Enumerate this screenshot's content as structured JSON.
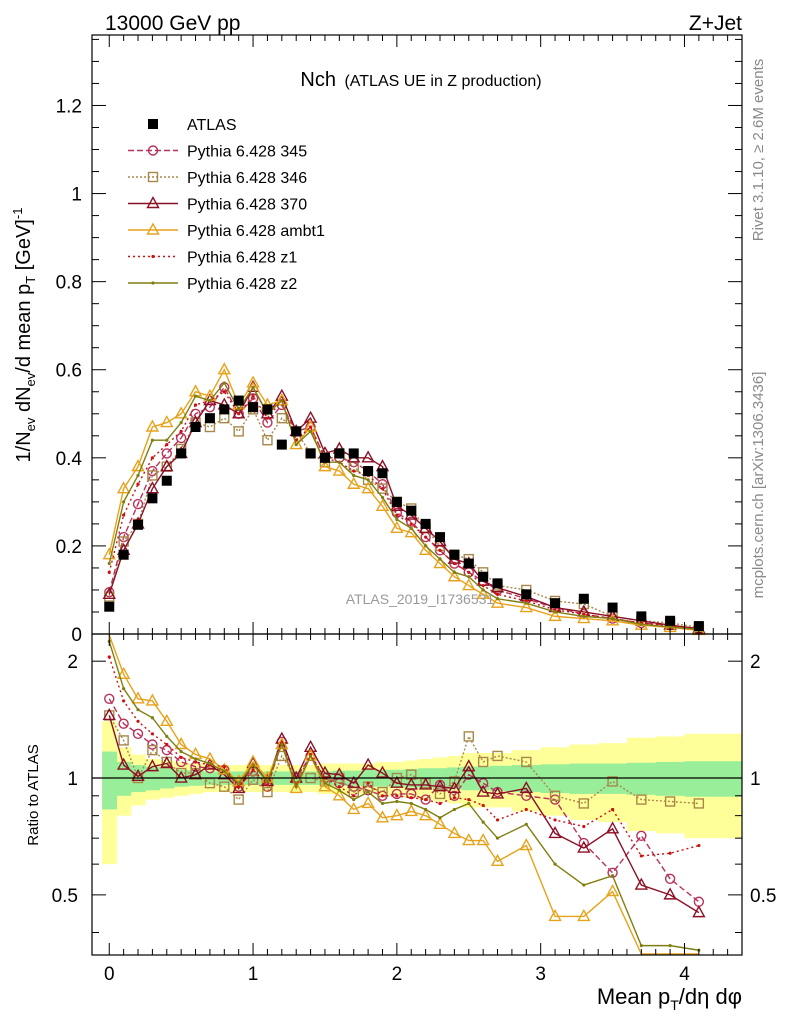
{
  "header": {
    "left": "13000 GeV pp",
    "right": "Z+Jet"
  },
  "side_labels": {
    "rivet": "Rivet 3.1.10, ≥ 2.6M events",
    "mcplots": "mcplots.cern.ch [arXiv:1306.3436]"
  },
  "chart_data": {
    "type": "scatter",
    "title": "Nch",
    "subtitle": "(ATLAS UE in Z production)",
    "watermark": "ATLAS_2019_I1736531",
    "xlabel": "Mean p_T/dη dφ",
    "ylabel": "1/N_ev dN_ev/d mean p_T [GeV]^-1",
    "ratio_ylabel": "Ratio to ATLAS",
    "xlim": [
      -0.12,
      4.4
    ],
    "ylim": [
      0,
      1.36
    ],
    "ratio_ylim": [
      0.35,
      2.35
    ],
    "x_ticks": [
      "0",
      "1",
      "2",
      "3",
      "4"
    ],
    "y_ticks": [
      "0",
      "0.2",
      "0.4",
      "0.6",
      "0.8",
      "1",
      "1.2"
    ],
    "ratio_ticks": [
      "0.5",
      "1",
      "2"
    ],
    "legend_position": "top-left",
    "data": {
      "name": "ATLAS",
      "color": "#000000",
      "x": [
        0.0,
        0.1,
        0.2,
        0.3,
        0.4,
        0.5,
        0.6,
        0.7,
        0.8,
        0.9,
        1.0,
        1.1,
        1.2,
        1.3,
        1.4,
        1.5,
        1.6,
        1.7,
        1.8,
        1.9,
        2.0,
        2.1,
        2.2,
        2.3,
        2.4,
        2.5,
        2.6,
        2.7,
        2.9,
        3.1,
        3.3,
        3.5,
        3.7,
        3.9,
        4.1
      ],
      "y": [
        0.062,
        0.18,
        0.248,
        0.308,
        0.348,
        0.41,
        0.47,
        0.49,
        0.51,
        0.53,
        0.515,
        0.51,
        0.43,
        0.46,
        0.41,
        0.4,
        0.41,
        0.41,
        0.37,
        0.365,
        0.3,
        0.28,
        0.25,
        0.22,
        0.18,
        0.16,
        0.13,
        0.115,
        0.09,
        0.07,
        0.08,
        0.06,
        0.04,
        0.03,
        0.018
      ]
    },
    "series": [
      {
        "name": "Pythia 6.428 345",
        "color": "#b8315a",
        "marker": "circle",
        "dash": "6,3",
        "y": [
          0.095,
          0.22,
          0.295,
          0.37,
          0.41,
          0.445,
          0.5,
          0.515,
          0.56,
          0.5,
          0.535,
          0.48,
          0.52,
          0.46,
          0.47,
          0.4,
          0.4,
          0.39,
          0.37,
          0.34,
          0.275,
          0.255,
          0.22,
          0.19,
          0.16,
          0.14,
          0.12,
          0.1,
          0.08,
          0.06,
          0.045,
          0.035,
          0.025,
          0.02,
          0.012
        ],
        "ratio": [
          1.6,
          1.38,
          1.3,
          1.22,
          1.18,
          1.1,
          1.07,
          1.06,
          1.05,
          0.95,
          1.04,
          0.95,
          1.24,
          1.0,
          1.14,
          1.0,
          0.97,
          0.95,
          0.93,
          0.9,
          0.91,
          0.91,
          0.88,
          0.96,
          0.9,
          1.02,
          0.97,
          0.92,
          0.9,
          0.88,
          0.68,
          0.57,
          0.71,
          0.55,
          0.48
        ]
      },
      {
        "name": "Pythia 6.428 346",
        "color": "#a8884a",
        "marker": "square",
        "dash": "2,2",
        "y": [
          0.085,
          0.21,
          0.25,
          0.36,
          0.38,
          0.42,
          0.48,
          0.47,
          0.49,
          0.46,
          0.51,
          0.44,
          0.49,
          0.46,
          0.41,
          0.39,
          0.41,
          0.38,
          0.35,
          0.33,
          0.3,
          0.285,
          0.24,
          0.2,
          0.18,
          0.17,
          0.14,
          0.11,
          0.1,
          0.075,
          0.068,
          0.04,
          0.03,
          0.025,
          0.015
        ],
        "ratio": [
          1.45,
          1.25,
          1.0,
          1.18,
          1.1,
          1.03,
          1.03,
          0.97,
          0.95,
          0.88,
          0.99,
          0.92,
          1.14,
          1.0,
          1.0,
          0.98,
          1.0,
          0.92,
          0.95,
          0.92,
          1.0,
          1.02,
          0.97,
          0.91,
          0.98,
          1.28,
          1.1,
          1.14,
          1.1,
          0.9,
          0.86,
          0.98,
          0.88,
          0.87,
          0.86
        ]
      },
      {
        "name": "Pythia 6.428 370",
        "color": "#8b1025",
        "marker": "triangle",
        "dash": "",
        "y": [
          0.09,
          0.19,
          0.25,
          0.33,
          0.38,
          0.41,
          0.48,
          0.53,
          0.52,
          0.5,
          0.56,
          0.5,
          0.54,
          0.46,
          0.49,
          0.41,
          0.42,
          0.4,
          0.4,
          0.38,
          0.29,
          0.27,
          0.24,
          0.21,
          0.17,
          0.16,
          0.12,
          0.105,
          0.085,
          0.06,
          0.05,
          0.04,
          0.03,
          0.02,
          0.012
        ],
        "ratio": [
          1.45,
          1.08,
          1.01,
          1.07,
          1.09,
          1.0,
          1.02,
          1.08,
          1.02,
          0.94,
          1.09,
          0.98,
          1.26,
          1.0,
          1.2,
          1.03,
          1.02,
          0.97,
          1.08,
          1.03,
          0.97,
          0.96,
          0.96,
          0.95,
          0.94,
          1.07,
          0.92,
          0.91,
          0.94,
          0.72,
          0.66,
          0.74,
          0.53,
          0.5,
          0.45
        ]
      },
      {
        "name": "Pythia 6.428 ambt1",
        "color": "#e8a21a",
        "marker": "triangle",
        "dash": "",
        "y": [
          0.18,
          0.33,
          0.38,
          0.47,
          0.48,
          0.5,
          0.55,
          0.54,
          0.6,
          0.52,
          0.57,
          0.52,
          0.53,
          0.43,
          0.47,
          0.38,
          0.37,
          0.34,
          0.33,
          0.29,
          0.24,
          0.23,
          0.19,
          0.16,
          0.13,
          0.11,
          0.09,
          0.07,
          0.06,
          0.04,
          0.035,
          0.03,
          0.02,
          0.015,
          0.008
        ],
        "ratio": [
          2.35,
          1.85,
          1.6,
          1.58,
          1.4,
          1.22,
          1.15,
          1.12,
          1.05,
          0.98,
          1.1,
          1.0,
          1.22,
          0.94,
          1.14,
          0.95,
          0.9,
          0.83,
          0.86,
          0.79,
          0.8,
          0.82,
          0.8,
          0.76,
          0.72,
          0.69,
          0.69,
          0.61,
          0.67,
          0.44,
          0.44,
          0.51,
          0.32,
          0.3,
          0.28
        ]
      },
      {
        "name": "Pythia 6.428 z1",
        "color": "#cc1111",
        "marker": "dot",
        "dash": "2,3",
        "y": [
          0.14,
          0.27,
          0.34,
          0.4,
          0.43,
          0.46,
          0.52,
          0.53,
          0.55,
          0.5,
          0.54,
          0.49,
          0.53,
          0.44,
          0.47,
          0.4,
          0.39,
          0.37,
          0.36,
          0.33,
          0.27,
          0.25,
          0.22,
          0.19,
          0.16,
          0.14,
          0.11,
          0.09,
          0.075,
          0.055,
          0.045,
          0.035,
          0.025,
          0.018,
          0.012
        ],
        "ratio": [
          2.05,
          1.58,
          1.4,
          1.3,
          1.22,
          1.13,
          1.1,
          1.08,
          1.07,
          0.95,
          1.05,
          0.96,
          1.23,
          0.96,
          1.15,
          1.0,
          0.95,
          0.9,
          0.97,
          0.9,
          0.9,
          0.89,
          0.88,
          0.86,
          0.89,
          0.88,
          0.85,
          0.78,
          0.83,
          0.78,
          0.75,
          0.83,
          0.63,
          0.64,
          0.67
        ]
      },
      {
        "name": "Pythia 6.428 z2",
        "color": "#7f7f10",
        "marker": "dot",
        "dash": "",
        "y": [
          0.16,
          0.3,
          0.36,
          0.44,
          0.44,
          0.48,
          0.54,
          0.53,
          0.57,
          0.51,
          0.56,
          0.5,
          0.53,
          0.43,
          0.46,
          0.39,
          0.39,
          0.36,
          0.35,
          0.31,
          0.26,
          0.24,
          0.2,
          0.17,
          0.14,
          0.13,
          0.1,
          0.08,
          0.07,
          0.05,
          0.04,
          0.035,
          0.022,
          0.016,
          0.01
        ],
        "ratio": [
          2.25,
          1.7,
          1.5,
          1.43,
          1.28,
          1.17,
          1.12,
          1.09,
          1.04,
          0.97,
          1.08,
          0.98,
          1.22,
          0.95,
          1.14,
          0.97,
          0.93,
          0.88,
          0.92,
          0.86,
          0.87,
          0.86,
          0.83,
          0.79,
          0.83,
          0.86,
          0.77,
          0.7,
          0.76,
          0.6,
          0.53,
          0.56,
          0.37,
          0.37,
          0.36
        ]
      }
    ],
    "bands": {
      "inner": {
        "color": "#99ee99",
        "lo": [
          0.83,
          0.9,
          0.92,
          0.93,
          0.94,
          0.95,
          0.955,
          0.96,
          0.96,
          0.96,
          0.96,
          0.96,
          0.96,
          0.96,
          0.96,
          0.96,
          0.955,
          0.955,
          0.95,
          0.95,
          0.95,
          0.945,
          0.94,
          0.94,
          0.935,
          0.93,
          0.93,
          0.925,
          0.92,
          0.915,
          0.91,
          0.91,
          0.905,
          0.9,
          0.895
        ],
        "hi": [
          1.17,
          1.1,
          1.08,
          1.07,
          1.06,
          1.05,
          1.045,
          1.04,
          1.04,
          1.04,
          1.04,
          1.04,
          1.04,
          1.04,
          1.04,
          1.04,
          1.045,
          1.045,
          1.05,
          1.05,
          1.05,
          1.055,
          1.06,
          1.06,
          1.065,
          1.07,
          1.07,
          1.075,
          1.08,
          1.085,
          1.09,
          1.09,
          1.095,
          1.1,
          1.105
        ]
      },
      "outer": {
        "color": "#ffff99",
        "lo": [
          0.6,
          0.8,
          0.85,
          0.88,
          0.89,
          0.9,
          0.91,
          0.92,
          0.92,
          0.92,
          0.92,
          0.92,
          0.92,
          0.92,
          0.92,
          0.91,
          0.91,
          0.91,
          0.91,
          0.9,
          0.9,
          0.89,
          0.88,
          0.87,
          0.86,
          0.84,
          0.84,
          0.84,
          0.82,
          0.8,
          0.78,
          0.77,
          0.73,
          0.72,
          0.7
        ],
        "hi": [
          1.4,
          1.2,
          1.15,
          1.12,
          1.11,
          1.1,
          1.09,
          1.08,
          1.08,
          1.08,
          1.08,
          1.08,
          1.08,
          1.08,
          1.08,
          1.09,
          1.09,
          1.09,
          1.09,
          1.1,
          1.1,
          1.11,
          1.12,
          1.13,
          1.14,
          1.16,
          1.16,
          1.16,
          1.18,
          1.2,
          1.22,
          1.23,
          1.27,
          1.28,
          1.3
        ]
      }
    }
  }
}
